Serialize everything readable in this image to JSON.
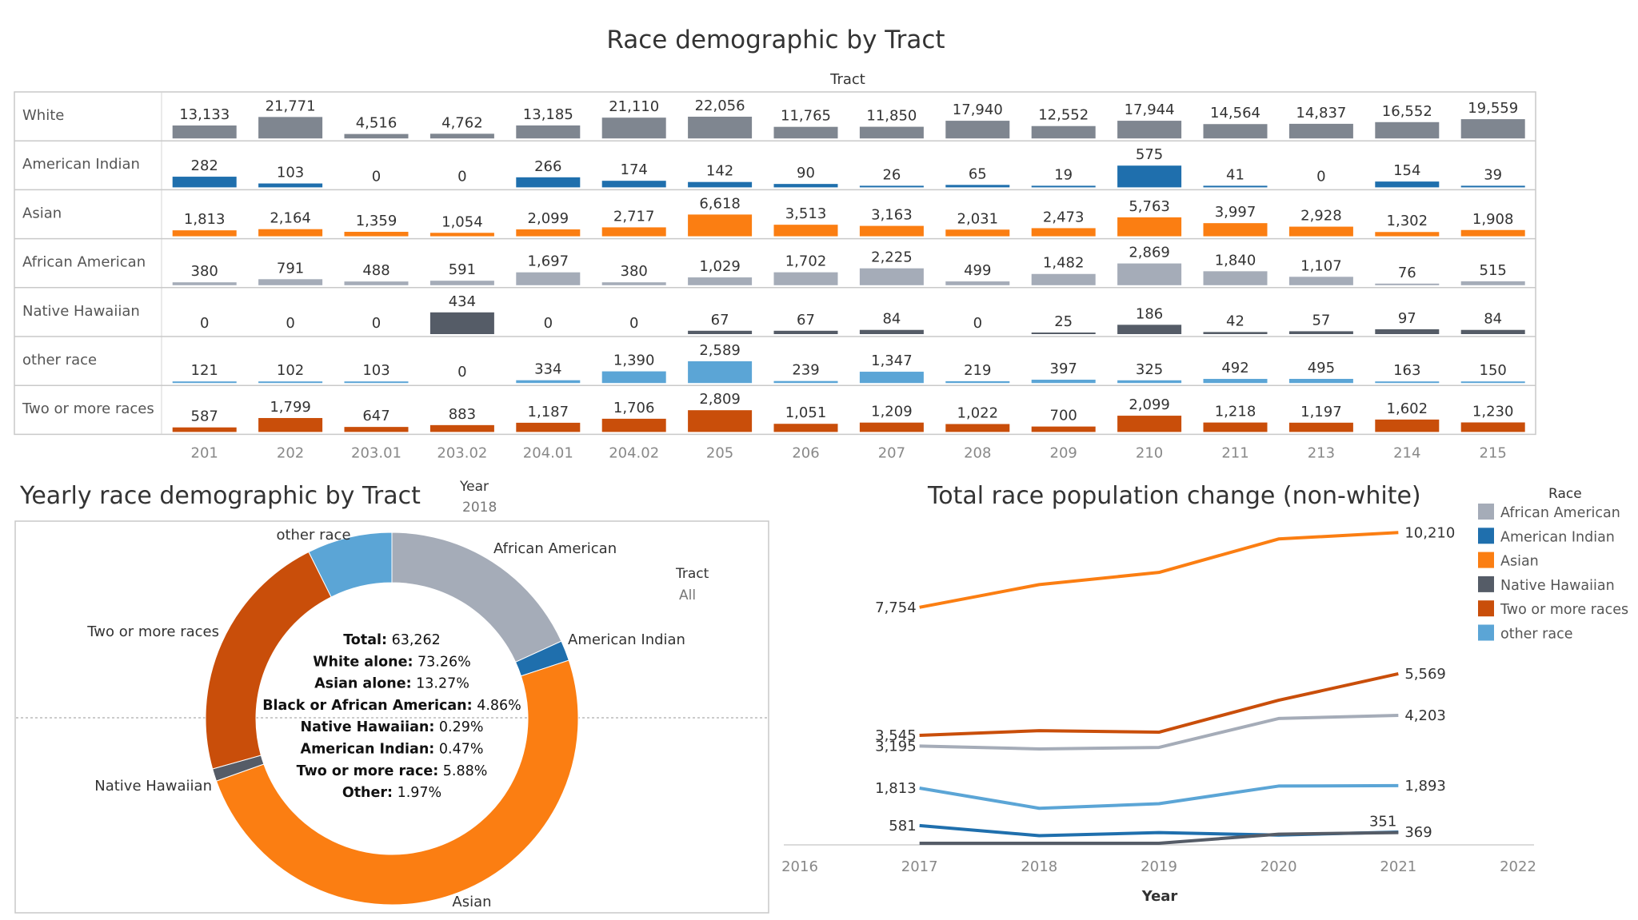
{
  "top": {
    "title": "Race demographic by Tract",
    "column_header": "Tract"
  },
  "donut_section": {
    "title": "Yearly race demographic by Tract",
    "year_filter": {
      "label": "Year",
      "value": "2018"
    },
    "tract_filter": {
      "label": "Tract",
      "value": "All"
    },
    "center_lines": [
      {
        "label": "Total:",
        "value": "63,262"
      },
      {
        "label": "White alone:",
        "value": "73.26%"
      },
      {
        "label": "Asian alone:",
        "value": "13.27%"
      },
      {
        "label": "Black or African American:",
        "value": "4.86%"
      },
      {
        "label": "Native Hawaiian:",
        "value": "0.29%"
      },
      {
        "label": "American Indian:",
        "value": "0.47%"
      },
      {
        "label": "Two or more race:",
        "value": "5.88%"
      },
      {
        "label": "Other:",
        "value": "1.97%"
      }
    ]
  },
  "line_section": {
    "title": "Total race population change (non-white)",
    "legend_title": "Race",
    "xlabel": "Year"
  },
  "colors": {
    "White": "#7f8690",
    "American Indian": "#1f6fad",
    "Asian": "#fb7e12",
    "African American": "#a5acb8",
    "Native Hawaiian": "#555c67",
    "other race": "#5ba5d6",
    "Two or more races": "#c94e0a"
  },
  "chart_data": [
    {
      "type": "bar",
      "title": "Race demographic by Tract",
      "xlabel": "Tract",
      "categories": [
        "201",
        "202",
        "203.01",
        "203.02",
        "204.01",
        "204.02",
        "205",
        "206",
        "207",
        "208",
        "209",
        "210",
        "211",
        "213",
        "214",
        "215"
      ],
      "series": [
        {
          "name": "White",
          "values": [
            13133,
            21771,
            4516,
            4762,
            13185,
            21110,
            22056,
            11765,
            11850,
            17940,
            12552,
            17944,
            14564,
            14837,
            16552,
            19559
          ]
        },
        {
          "name": "American Indian",
          "values": [
            282,
            103,
            0,
            0,
            266,
            174,
            142,
            90,
            26,
            65,
            19,
            575,
            41,
            0,
            154,
            39
          ]
        },
        {
          "name": "Asian",
          "values": [
            1813,
            2164,
            1359,
            1054,
            2099,
            2717,
            6618,
            3513,
            3163,
            2031,
            2473,
            5763,
            3997,
            2928,
            1302,
            1908
          ]
        },
        {
          "name": "African American",
          "values": [
            380,
            791,
            488,
            591,
            1697,
            380,
            1029,
            1702,
            2225,
            499,
            1482,
            2869,
            1840,
            1107,
            76,
            515
          ]
        },
        {
          "name": "Native Hawaiian",
          "values": [
            0,
            0,
            0,
            434,
            0,
            0,
            67,
            67,
            84,
            0,
            25,
            186,
            42,
            57,
            97,
            84
          ]
        },
        {
          "name": "other race",
          "values": [
            121,
            102,
            103,
            0,
            334,
            1390,
            2589,
            239,
            1347,
            219,
            397,
            325,
            492,
            495,
            163,
            150
          ]
        },
        {
          "name": "Two or more races",
          "values": [
            587,
            1799,
            647,
            883,
            1187,
            1706,
            2809,
            1051,
            1209,
            1022,
            700,
            2099,
            1218,
            1197,
            1602,
            1230
          ]
        }
      ]
    },
    {
      "type": "pie",
      "title": "Yearly race demographic by Tract",
      "note": "donut; White slice not drawn",
      "slices": [
        {
          "name": "African American",
          "value": 4.86
        },
        {
          "name": "American Indian",
          "value": 0.47
        },
        {
          "name": "Asian",
          "value": 13.27
        },
        {
          "name": "Native Hawaiian",
          "value": 0.29
        },
        {
          "name": "Two or more races",
          "value": 5.88
        },
        {
          "name": "other race",
          "value": 1.97
        }
      ]
    },
    {
      "type": "line",
      "title": "Total race population change (non-white)",
      "xlabel": "Year",
      "x_ticks": [
        2016,
        2017,
        2018,
        2019,
        2020,
        2021,
        2022
      ],
      "x": [
        2017,
        2018,
        2019,
        2020,
        2021
      ],
      "series": [
        {
          "name": "Asian",
          "values": [
            7754,
            8500,
            8900,
            10000,
            10210
          ],
          "labels": {
            "first": "7,754",
            "last": "10,210"
          }
        },
        {
          "name": "Two or more races",
          "values": [
            3545,
            3700,
            3650,
            4700,
            5569
          ],
          "labels": {
            "first": "3,545",
            "last": "5,569"
          }
        },
        {
          "name": "African American",
          "values": [
            3195,
            3100,
            3150,
            4100,
            4203
          ],
          "labels": {
            "first": "3,195",
            "last": "4,203"
          }
        },
        {
          "name": "other race",
          "values": [
            1813,
            1150,
            1300,
            1880,
            1893
          ],
          "labels": {
            "first": "1,813",
            "last": "1,893"
          }
        },
        {
          "name": "American Indian",
          "values": [
            581,
            250,
            350,
            270,
            369
          ],
          "labels": {
            "first": "581",
            "last": "369"
          }
        },
        {
          "name": "Native Hawaiian",
          "values": [
            0,
            0,
            0,
            300,
            351
          ],
          "labels": {
            "last": "351"
          }
        }
      ],
      "legend": [
        "African American",
        "American Indian",
        "Asian",
        "Native Hawaiian",
        "Two or more races",
        "other race"
      ]
    }
  ]
}
